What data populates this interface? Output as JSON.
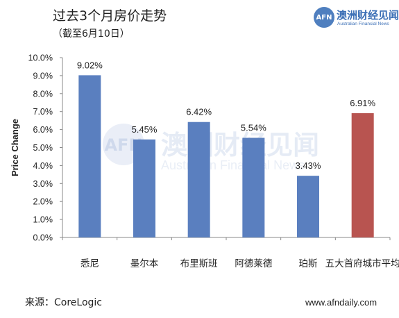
{
  "header": {
    "title": "过去3个月房价走势",
    "subtitle": "（截至6月10日）"
  },
  "logo": {
    "mark": "AFN",
    "name_cn": "澳洲财经见闻",
    "name_en": "Australian Financial News"
  },
  "watermark": {
    "mark": "AFN",
    "cn": "澳洲财经见闻",
    "en": "Australian Financial News"
  },
  "footer": {
    "source": "来源：CoreLogic",
    "site": "www.afndaily.com"
  },
  "colors": {
    "bar_primary": "#5a7fbf",
    "bar_highlight": "#b85450",
    "axis": "#888888"
  },
  "chart_data": {
    "type": "bar",
    "title": "过去3个月房价走势",
    "subtitle": "（截至6月10日）",
    "xlabel": "",
    "ylabel": "Price Change",
    "ylim": [
      0,
      10
    ],
    "yticks": [
      "0.0%",
      "1.0%",
      "2.0%",
      "3.0%",
      "4.0%",
      "5.0%",
      "6.0%",
      "7.0%",
      "8.0%",
      "9.0%",
      "10.0%"
    ],
    "grid": false,
    "categories": [
      "悉尼",
      "墨尔本",
      "布里斯班",
      "阿德莱德",
      "珀斯",
      "五大首府城市平均"
    ],
    "values": [
      9.02,
      5.45,
      6.42,
      5.54,
      3.43,
      6.91
    ],
    "labels": [
      "9.02%",
      "5.45%",
      "6.42%",
      "5.54%",
      "3.43%",
      "6.91%"
    ],
    "highlight_index": 5
  }
}
